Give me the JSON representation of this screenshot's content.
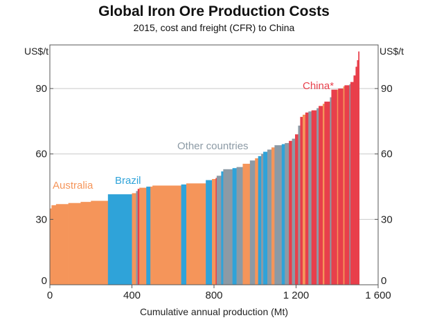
{
  "chart_data": {
    "type": "area",
    "title": "Global Iron Ore Production Costs",
    "subtitle": "2015, cost and freight (CFR) to China",
    "xlabel": "Cumulative annual production (Mt)",
    "ylabel_left": "US$/t",
    "ylabel_right": "US$/t",
    "xlim": [
      0,
      1600
    ],
    "ylim": [
      0,
      110
    ],
    "x_ticks": [
      0,
      400,
      800,
      1200,
      1600
    ],
    "x_tick_labels": [
      "0",
      "400",
      "800",
      "1 200",
      "1 600"
    ],
    "y_ticks": [
      0,
      30,
      60,
      90
    ],
    "y_tick_labels": [
      "0",
      "30",
      "60",
      "90"
    ],
    "grid": "horizontal",
    "annotations": [
      {
        "text": "Australia",
        "country": "australia"
      },
      {
        "text": "Brazil",
        "country": "brazil"
      },
      {
        "text": "Other countries",
        "country": "other"
      },
      {
        "text": "China*",
        "country": "china"
      }
    ],
    "colors": {
      "australia": "#f5955a",
      "brazil": "#2fa3d9",
      "other": "#8c9aa5",
      "china": "#e83f4b",
      "grid": "#c9c9c9",
      "axis": "#555555"
    },
    "segments": [
      {
        "x0": 0,
        "x1": 8,
        "y": 35,
        "country": "australia"
      },
      {
        "x0": 8,
        "x1": 30,
        "y": 36.5,
        "country": "australia"
      },
      {
        "x0": 30,
        "x1": 90,
        "y": 37,
        "country": "australia"
      },
      {
        "x0": 90,
        "x1": 150,
        "y": 37.5,
        "country": "australia"
      },
      {
        "x0": 150,
        "x1": 200,
        "y": 38,
        "country": "australia"
      },
      {
        "x0": 200,
        "x1": 283,
        "y": 38.5,
        "country": "australia"
      },
      {
        "x0": 283,
        "x1": 400,
        "y": 41.5,
        "country": "brazil"
      },
      {
        "x0": 400,
        "x1": 420,
        "y": 42,
        "country": "australia"
      },
      {
        "x0": 420,
        "x1": 428,
        "y": 43,
        "country": "other"
      },
      {
        "x0": 428,
        "x1": 436,
        "y": 44,
        "country": "china"
      },
      {
        "x0": 436,
        "x1": 470,
        "y": 44.5,
        "country": "australia"
      },
      {
        "x0": 470,
        "x1": 490,
        "y": 45,
        "country": "brazil"
      },
      {
        "x0": 490,
        "x1": 500,
        "y": 45,
        "country": "australia"
      },
      {
        "x0": 500,
        "x1": 640,
        "y": 45.5,
        "country": "australia"
      },
      {
        "x0": 640,
        "x1": 665,
        "y": 46,
        "country": "brazil"
      },
      {
        "x0": 665,
        "x1": 760,
        "y": 46.5,
        "country": "australia"
      },
      {
        "x0": 760,
        "x1": 790,
        "y": 48,
        "country": "brazil"
      },
      {
        "x0": 790,
        "x1": 808,
        "y": 48.5,
        "country": "australia"
      },
      {
        "x0": 808,
        "x1": 813,
        "y": 49,
        "country": "china"
      },
      {
        "x0": 813,
        "x1": 835,
        "y": 50,
        "country": "other"
      },
      {
        "x0": 835,
        "x1": 845,
        "y": 52,
        "country": "brazil"
      },
      {
        "x0": 845,
        "x1": 890,
        "y": 53,
        "country": "other"
      },
      {
        "x0": 890,
        "x1": 910,
        "y": 53.5,
        "country": "brazil"
      },
      {
        "x0": 910,
        "x1": 940,
        "y": 54,
        "country": "other"
      },
      {
        "x0": 940,
        "x1": 975,
        "y": 55.5,
        "country": "australia"
      },
      {
        "x0": 975,
        "x1": 1000,
        "y": 57,
        "country": "other"
      },
      {
        "x0": 1000,
        "x1": 1015,
        "y": 58,
        "country": "australia"
      },
      {
        "x0": 1015,
        "x1": 1030,
        "y": 59,
        "country": "brazil"
      },
      {
        "x0": 1030,
        "x1": 1040,
        "y": 60,
        "country": "other"
      },
      {
        "x0": 1040,
        "x1": 1060,
        "y": 61,
        "country": "brazil"
      },
      {
        "x0": 1060,
        "x1": 1080,
        "y": 62,
        "country": "other"
      },
      {
        "x0": 1080,
        "x1": 1095,
        "y": 63,
        "country": "australia"
      },
      {
        "x0": 1095,
        "x1": 1130,
        "y": 64,
        "country": "other"
      },
      {
        "x0": 1130,
        "x1": 1145,
        "y": 64.5,
        "country": "brazil"
      },
      {
        "x0": 1145,
        "x1": 1165,
        "y": 65,
        "country": "other"
      },
      {
        "x0": 1165,
        "x1": 1180,
        "y": 66,
        "country": "china"
      },
      {
        "x0": 1180,
        "x1": 1195,
        "y": 67,
        "country": "other"
      },
      {
        "x0": 1195,
        "x1": 1210,
        "y": 69,
        "country": "china"
      },
      {
        "x0": 1210,
        "x1": 1220,
        "y": 73,
        "country": "other"
      },
      {
        "x0": 1220,
        "x1": 1232,
        "y": 77,
        "country": "china"
      },
      {
        "x0": 1232,
        "x1": 1245,
        "y": 78,
        "country": "australia"
      },
      {
        "x0": 1245,
        "x1": 1260,
        "y": 79,
        "country": "china"
      },
      {
        "x0": 1260,
        "x1": 1275,
        "y": 79.5,
        "country": "other"
      },
      {
        "x0": 1275,
        "x1": 1300,
        "y": 80,
        "country": "china"
      },
      {
        "x0": 1300,
        "x1": 1310,
        "y": 81,
        "country": "other"
      },
      {
        "x0": 1310,
        "x1": 1330,
        "y": 82,
        "country": "china"
      },
      {
        "x0": 1330,
        "x1": 1338,
        "y": 83,
        "country": "australia"
      },
      {
        "x0": 1338,
        "x1": 1365,
        "y": 84,
        "country": "china"
      },
      {
        "x0": 1365,
        "x1": 1372,
        "y": 86,
        "country": "other"
      },
      {
        "x0": 1372,
        "x1": 1400,
        "y": 89.5,
        "country": "china"
      },
      {
        "x0": 1400,
        "x1": 1405,
        "y": 89.5,
        "country": "australia"
      },
      {
        "x0": 1405,
        "x1": 1430,
        "y": 90,
        "country": "china"
      },
      {
        "x0": 1430,
        "x1": 1436,
        "y": 91,
        "country": "australia"
      },
      {
        "x0": 1436,
        "x1": 1460,
        "y": 91.5,
        "country": "china"
      },
      {
        "x0": 1460,
        "x1": 1465,
        "y": 92,
        "country": "other"
      },
      {
        "x0": 1465,
        "x1": 1480,
        "y": 93,
        "country": "china"
      },
      {
        "x0": 1480,
        "x1": 1490,
        "y": 96,
        "country": "china"
      },
      {
        "x0": 1490,
        "x1": 1497,
        "y": 100,
        "country": "china"
      },
      {
        "x0": 1497,
        "x1": 1503,
        "y": 103,
        "country": "china"
      },
      {
        "x0": 1503,
        "x1": 1508,
        "y": 107,
        "country": "china"
      }
    ]
  }
}
